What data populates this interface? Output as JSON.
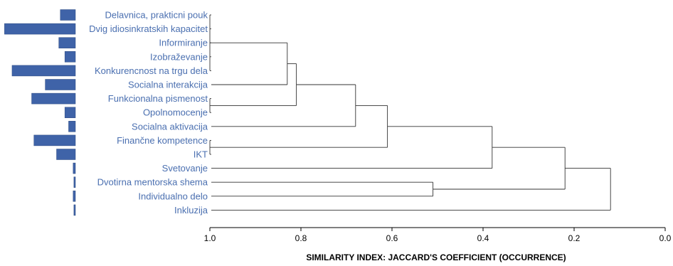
{
  "chart_data": {
    "type": "dendrogram",
    "xlabel": "SIMILARITY INDEX: JACCARD'S COEFFICIENT (OCCURRENCE)",
    "xlim": [
      1.0,
      0.0
    ],
    "ticks": [
      "1.0",
      "0.8",
      "0.6",
      "0.4",
      "0.2",
      "0.0"
    ],
    "tick_values": [
      1.0,
      0.8,
      0.6,
      0.4,
      0.2,
      0.0
    ],
    "bar_color": "#3f63a8",
    "label_color": "#4a6fb0",
    "leaves": [
      {
        "label": "Delavnica, prakticni pouk",
        "bar": 0.2
      },
      {
        "label": "Dvig idiosinkratskih kapacitet",
        "bar": 0.94
      },
      {
        "label": "Informiranje",
        "bar": 0.22
      },
      {
        "label": "Izobraževanje",
        "bar": 0.14
      },
      {
        "label": "Konkurencnost na trgu dela",
        "bar": 0.84
      },
      {
        "label": "Socialna interakcija",
        "bar": 0.4
      },
      {
        "label": "Funkcionalna pismenost",
        "bar": 0.58
      },
      {
        "label": "Opolnomocenje",
        "bar": 0.14
      },
      {
        "label": "Socialna aktivacija",
        "bar": 0.09
      },
      {
        "label": "Finančne kompetence",
        "bar": 0.55
      },
      {
        "label": "IKT",
        "bar": 0.25
      },
      {
        "label": "Svetovanje",
        "bar": 0.03
      },
      {
        "label": "Dvotirna mentorska shema",
        "bar": 0.02
      },
      {
        "label": "Individualno delo",
        "bar": 0.03
      },
      {
        "label": "Inkluzija",
        "bar": 0.02
      }
    ],
    "merges": [
      {
        "id": "c1",
        "children": [
          0,
          1,
          2,
          3,
          4
        ],
        "height": 1.0
      },
      {
        "id": "c2",
        "children": [
          "c1",
          5
        ],
        "height": 0.83
      },
      {
        "id": "c3",
        "children": [
          6,
          7
        ],
        "height": 1.0
      },
      {
        "id": "c4",
        "children": [
          "c2",
          "c3"
        ],
        "height": 0.81
      },
      {
        "id": "c5",
        "children": [
          "c4",
          8
        ],
        "height": 0.68
      },
      {
        "id": "c6",
        "children": [
          9,
          10
        ],
        "height": 1.0
      },
      {
        "id": "c7",
        "children": [
          "c5",
          "c6"
        ],
        "height": 0.61
      },
      {
        "id": "c8",
        "children": [
          "c7",
          11
        ],
        "height": 0.38
      },
      {
        "id": "c9",
        "children": [
          12,
          13
        ],
        "height": 0.51
      },
      {
        "id": "c10",
        "children": [
          "c8",
          "c9"
        ],
        "height": 0.22
      },
      {
        "id": "c11",
        "children": [
          "c10",
          14
        ],
        "height": 0.12
      }
    ]
  }
}
